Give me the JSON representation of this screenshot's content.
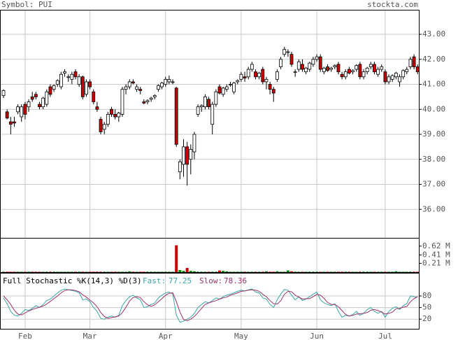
{
  "header": {
    "symbol": "Symbol: PUI",
    "site": "stockta.com"
  },
  "chart_data": [
    {
      "type": "candlestick",
      "up_color": "#ffffff",
      "down_color": "#cc0000",
      "categories": [
        null,
        null,
        null,
        null,
        null,
        null,
        "Feb",
        null,
        null,
        null,
        null,
        null,
        null,
        null,
        null,
        null,
        null,
        null,
        null,
        null,
        null,
        null,
        null,
        null,
        "Mar",
        null,
        null,
        null,
        null,
        null,
        null,
        null,
        null,
        null,
        null,
        null,
        null,
        null,
        null,
        null,
        null,
        null,
        null,
        null,
        null,
        "Apr",
        null,
        null,
        null,
        null,
        null,
        null,
        null,
        null,
        null,
        null,
        null,
        null,
        null,
        null,
        null,
        null,
        null,
        null,
        null,
        null,
        "May",
        null,
        null,
        null,
        null,
        null,
        null,
        null,
        null,
        null,
        null,
        null,
        null,
        null,
        null,
        null,
        null,
        null,
        null,
        null,
        null,
        "Jun",
        null,
        null,
        null,
        null,
        null,
        null,
        null,
        null,
        null,
        null,
        null,
        null,
        null,
        null,
        null,
        null,
        null,
        null,
        "Jul",
        null,
        null,
        null,
        null,
        null,
        null,
        null,
        null,
        null
      ],
      "candles": [
        [
          40.55,
          40.8,
          40.45,
          40.75
        ],
        [
          39.9,
          40.0,
          39.6,
          39.65
        ],
        [
          39.5,
          39.7,
          39.0,
          39.4
        ],
        [
          39.5,
          39.7,
          39.3,
          39.45
        ],
        [
          39.9,
          40.2,
          39.8,
          40.1
        ],
        [
          39.7,
          40.2,
          39.5,
          40.1
        ],
        [
          40.2,
          40.3,
          39.6,
          39.8
        ],
        [
          40.1,
          40.4,
          39.9,
          40.3
        ],
        [
          40.5,
          40.7,
          40.3,
          40.4
        ],
        [
          40.6,
          40.7,
          40.4,
          40.5
        ],
        [
          40.2,
          40.3,
          40.0,
          40.1
        ],
        [
          40.1,
          40.5,
          40.0,
          40.45
        ],
        [
          40.2,
          40.8,
          40.1,
          40.7
        ],
        [
          40.9,
          41.0,
          40.5,
          40.6
        ],
        [
          40.8,
          41.0,
          40.7,
          40.95
        ],
        [
          41.0,
          41.2,
          40.9,
          41.15
        ],
        [
          40.9,
          41.5,
          40.8,
          41.4
        ],
        [
          41.45,
          41.6,
          41.3,
          41.5
        ],
        [
          41.3,
          41.4,
          41.1,
          41.3
        ],
        [
          41.2,
          41.5,
          41.0,
          41.4
        ],
        [
          41.5,
          41.6,
          41.2,
          41.3
        ],
        [
          41.0,
          41.4,
          40.9,
          41.3
        ],
        [
          41.3,
          41.35,
          40.4,
          40.5
        ],
        [
          40.6,
          41.2,
          40.5,
          41.1
        ],
        [
          41.1,
          41.2,
          40.8,
          40.9
        ],
        [
          40.7,
          40.8,
          40.2,
          40.3
        ],
        [
          40.1,
          40.3,
          39.9,
          40.0
        ],
        [
          39.6,
          39.7,
          39.0,
          39.1
        ],
        [
          39.2,
          39.5,
          39.0,
          39.4
        ],
        [
          39.4,
          39.9,
          39.3,
          39.8
        ],
        [
          40.0,
          40.1,
          39.7,
          39.8
        ],
        [
          39.8,
          40.0,
          39.6,
          39.7
        ],
        [
          39.7,
          39.9,
          39.5,
          39.85
        ],
        [
          39.8,
          40.9,
          39.7,
          40.8
        ],
        [
          40.8,
          41.0,
          40.6,
          40.9
        ],
        [
          40.9,
          41.2,
          40.8,
          41.1
        ],
        [
          41.1,
          41.2,
          41.0,
          41.05
        ],
        [
          40.8,
          41.0,
          40.7,
          40.9
        ],
        [
          40.8,
          40.9,
          40.6,
          40.75
        ],
        [
          40.3,
          40.4,
          40.2,
          40.25
        ],
        [
          40.3,
          40.4,
          40.2,
          40.35
        ],
        [
          40.4,
          40.5,
          40.3,
          40.45
        ],
        [
          40.5,
          40.6,
          40.4,
          40.55
        ],
        [
          40.8,
          41.0,
          40.7,
          40.95
        ],
        [
          40.9,
          41.1,
          40.8,
          41.05
        ],
        [
          41.0,
          41.3,
          40.9,
          41.2
        ],
        [
          41.1,
          41.35,
          41.0,
          41.2
        ],
        [
          41.1,
          41.2,
          41.0,
          41.1
        ],
        [
          40.85,
          40.9,
          38.5,
          38.6
        ],
        [
          37.5,
          38.0,
          37.2,
          37.9
        ],
        [
          37.8,
          38.8,
          37.3,
          38.5
        ],
        [
          38.5,
          38.7,
          36.95,
          37.8
        ],
        [
          38.0,
          38.6,
          37.4,
          38.4
        ],
        [
          38.3,
          39.1,
          38.0,
          39.0
        ],
        [
          39.8,
          40.2,
          39.7,
          40.1
        ],
        [
          40.1,
          40.2,
          39.9,
          40.15
        ],
        [
          40.1,
          40.6,
          40.0,
          40.5
        ],
        [
          40.4,
          40.5,
          40.0,
          40.1
        ],
        [
          39.4,
          40.3,
          39.0,
          40.2
        ],
        [
          40.2,
          40.8,
          40.1,
          40.7
        ],
        [
          40.9,
          41.0,
          40.6,
          40.65
        ],
        [
          40.6,
          40.9,
          40.5,
          40.85
        ],
        [
          40.8,
          41.0,
          40.7,
          40.9
        ],
        [
          41.0,
          41.1,
          40.9,
          41.0
        ],
        [
          40.7,
          41.1,
          40.6,
          41.05
        ],
        [
          41.1,
          41.2,
          41.0,
          41.15
        ],
        [
          41.2,
          41.5,
          41.1,
          41.4
        ],
        [
          41.3,
          41.5,
          41.1,
          41.25
        ],
        [
          41.3,
          41.7,
          41.2,
          41.6
        ],
        [
          41.6,
          41.9,
          41.5,
          41.8
        ],
        [
          41.5,
          41.6,
          41.2,
          41.3
        ],
        [
          41.3,
          41.5,
          41.2,
          41.45
        ],
        [
          41.6,
          41.7,
          41.0,
          41.1
        ],
        [
          41.1,
          41.3,
          40.8,
          41.2
        ],
        [
          41.0,
          41.1,
          40.6,
          40.8
        ],
        [
          40.8,
          40.9,
          40.3,
          40.65
        ],
        [
          41.2,
          41.6,
          41.1,
          41.5
        ],
        [
          41.7,
          42.1,
          41.6,
          42.0
        ],
        [
          42.2,
          42.5,
          42.1,
          42.4
        ],
        [
          42.3,
          42.4,
          42.1,
          42.3
        ],
        [
          42.2,
          42.3,
          41.7,
          41.8
        ],
        [
          41.5,
          41.6,
          41.3,
          41.5
        ],
        [
          41.6,
          42.0,
          41.5,
          41.9
        ],
        [
          41.8,
          42.0,
          41.5,
          41.6
        ],
        [
          41.5,
          41.7,
          41.4,
          41.65
        ],
        [
          41.6,
          41.9,
          41.5,
          41.85
        ],
        [
          41.8,
          42.1,
          41.7,
          42.0
        ],
        [
          42.0,
          42.2,
          41.9,
          42.1
        ],
        [
          42.1,
          42.2,
          41.5,
          41.6
        ],
        [
          41.5,
          41.7,
          41.4,
          41.65
        ],
        [
          41.7,
          41.8,
          41.5,
          41.55
        ],
        [
          41.6,
          41.7,
          41.5,
          41.65
        ],
        [
          41.7,
          41.8,
          41.6,
          41.75
        ],
        [
          41.8,
          41.9,
          41.4,
          41.5
        ],
        [
          41.4,
          41.5,
          41.2,
          41.3
        ],
        [
          41.3,
          41.6,
          41.2,
          41.5
        ],
        [
          41.6,
          41.7,
          41.4,
          41.45
        ],
        [
          41.5,
          41.6,
          41.4,
          41.55
        ],
        [
          41.6,
          41.8,
          41.5,
          41.75
        ],
        [
          41.8,
          41.9,
          41.2,
          41.3
        ],
        [
          41.3,
          41.6,
          41.2,
          41.5
        ],
        [
          41.5,
          41.7,
          41.4,
          41.65
        ],
        [
          41.7,
          41.9,
          41.6,
          41.8
        ],
        [
          41.8,
          41.9,
          41.4,
          41.5
        ],
        [
          41.4,
          41.7,
          41.3,
          41.6
        ],
        [
          41.6,
          41.8,
          41.5,
          41.7
        ],
        [
          41.5,
          41.6,
          41.0,
          41.1
        ],
        [
          41.1,
          41.4,
          41.0,
          41.3
        ],
        [
          41.2,
          41.4,
          41.1,
          41.35
        ],
        [
          41.3,
          41.5,
          41.2,
          41.45
        ],
        [
          41.1,
          41.4,
          40.9,
          41.3
        ],
        [
          41.3,
          41.6,
          41.2,
          41.55
        ],
        [
          41.5,
          41.7,
          41.4,
          41.6
        ],
        [
          41.7,
          42.1,
          41.6,
          42.0
        ],
        [
          42.1,
          42.2,
          41.6,
          41.7
        ],
        [
          41.7,
          41.8,
          41.4,
          41.5
        ]
      ],
      "ylim": [
        34.86,
        43.98
      ],
      "yticks": [
        {
          "value": 36,
          "label": "36.00"
        },
        {
          "value": 37,
          "label": "37.00"
        },
        {
          "value": 38,
          "label": "38.00"
        },
        {
          "value": 39,
          "label": "39.00"
        },
        {
          "value": 40,
          "label": "40.00"
        },
        {
          "value": 41,
          "label": "41.00"
        },
        {
          "value": 42,
          "label": "42.00"
        },
        {
          "value": 43,
          "label": "43.00"
        }
      ],
      "grid": true
    },
    {
      "type": "bar",
      "up_color": "#008800",
      "down_color": "#cc0000",
      "values": [
        0.01,
        0.01,
        0.01,
        0.01,
        0.01,
        0.01,
        0.01,
        0.01,
        0.01,
        0.01,
        0.01,
        0.01,
        0.01,
        0.01,
        0.01,
        0.01,
        0.01,
        0.01,
        0.01,
        0.01,
        0.01,
        0.01,
        0.01,
        0.01,
        0.01,
        0.01,
        0.01,
        0.01,
        0.01,
        0.01,
        0.01,
        0.01,
        0.01,
        0.01,
        0.01,
        0.02,
        0.01,
        0.01,
        0.01,
        0.01,
        0.01,
        0.01,
        0.01,
        0.01,
        0.01,
        0.01,
        0.01,
        0.01,
        0.64,
        0.05,
        0.03,
        0.1,
        0.03,
        0.02,
        0.01,
        0.01,
        0.01,
        0.01,
        0.01,
        0.01,
        0.04,
        0.03,
        0.02,
        0.01,
        0.01,
        0.01,
        0.01,
        0.01,
        0.01,
        0.01,
        0.01,
        0.01,
        0.01,
        0.02,
        0.01,
        0.01,
        0.02,
        0.01,
        0.01,
        0.04,
        0.02,
        0.01,
        0.01,
        0.01,
        0.01,
        0.01,
        0.01,
        0.01,
        0.01,
        0.01,
        0.01,
        0.01,
        0.01,
        0.01,
        0.01,
        0.01,
        0.01,
        0.01,
        0.01,
        0.01,
        0.01,
        0.01,
        0.01,
        0.01,
        0.01,
        0.01,
        0.01,
        0.01,
        0.01,
        0.02,
        0.01,
        0.01,
        0.01,
        0.01,
        0.01,
        0.01
      ],
      "ylim": [
        0,
        0.8
      ],
      "yticks": [
        {
          "value": 0.21,
          "label": "0.21 M"
        },
        {
          "value": 0.41,
          "label": "0.41 M"
        },
        {
          "value": 0.62,
          "label": "0.62 M"
        }
      ]
    },
    {
      "type": "line",
      "title": "Full Stochastic %K(14,3) %D(3)",
      "series": [
        {
          "name": "Fast:",
          "last_value": 77.25,
          "color": "#3aa8a8",
          "values": [
            75,
            60,
            40,
            30,
            28,
            35,
            45,
            42,
            48,
            55,
            50,
            58,
            68,
            72,
            80,
            88,
            95,
            98,
            96,
            94,
            92,
            88,
            70,
            72,
            65,
            50,
            40,
            22,
            20,
            25,
            28,
            25,
            30,
            55,
            68,
            78,
            82,
            75,
            70,
            50,
            52,
            58,
            62,
            75,
            82,
            88,
            90,
            85,
            30,
            12,
            15,
            20,
            25,
            35,
            50,
            58,
            65,
            62,
            68,
            75,
            72,
            78,
            82,
            85,
            88,
            92,
            95,
            93,
            96,
            98,
            90,
            88,
            75,
            72,
            58,
            50,
            70,
            85,
            97,
            95,
            82,
            70,
            78,
            68,
            72,
            78,
            85,
            90,
            70,
            62,
            58,
            55,
            60,
            40,
            25,
            30,
            28,
            32,
            40,
            30,
            35,
            45,
            50,
            40,
            35,
            40,
            25,
            40,
            48,
            52,
            45,
            55,
            60,
            80,
            78,
            77.25
          ]
        },
        {
          "name": "Slow:",
          "last_value": 78.36,
          "color": "#a0306a",
          "values": [
            80,
            70,
            58,
            43,
            33,
            31,
            36,
            41,
            45,
            48,
            51,
            54,
            59,
            66,
            73,
            80,
            88,
            94,
            96,
            96,
            94,
            91,
            83,
            77,
            69,
            62,
            52,
            37,
            27,
            22,
            24,
            26,
            28,
            37,
            51,
            67,
            76,
            78,
            76,
            65,
            57,
            53,
            57,
            65,
            73,
            82,
            87,
            88,
            65,
            38,
            19,
            16,
            20,
            27,
            37,
            48,
            58,
            62,
            65,
            68,
            72,
            75,
            77,
            82,
            85,
            88,
            92,
            93,
            95,
            96,
            95,
            92,
            84,
            78,
            68,
            60,
            59,
            68,
            84,
            92,
            91,
            82,
            77,
            72,
            73,
            73,
            78,
            84,
            82,
            74,
            63,
            58,
            58,
            52,
            42,
            32,
            28,
            30,
            33,
            34,
            35,
            37,
            43,
            45,
            42,
            38,
            33,
            35,
            38,
            47,
            48,
            51,
            53,
            65,
            73,
            78.36
          ]
        }
      ],
      "ylim": [
        -5,
        138
      ],
      "yticks": [
        20,
        50,
        80
      ],
      "grid": true
    }
  ]
}
